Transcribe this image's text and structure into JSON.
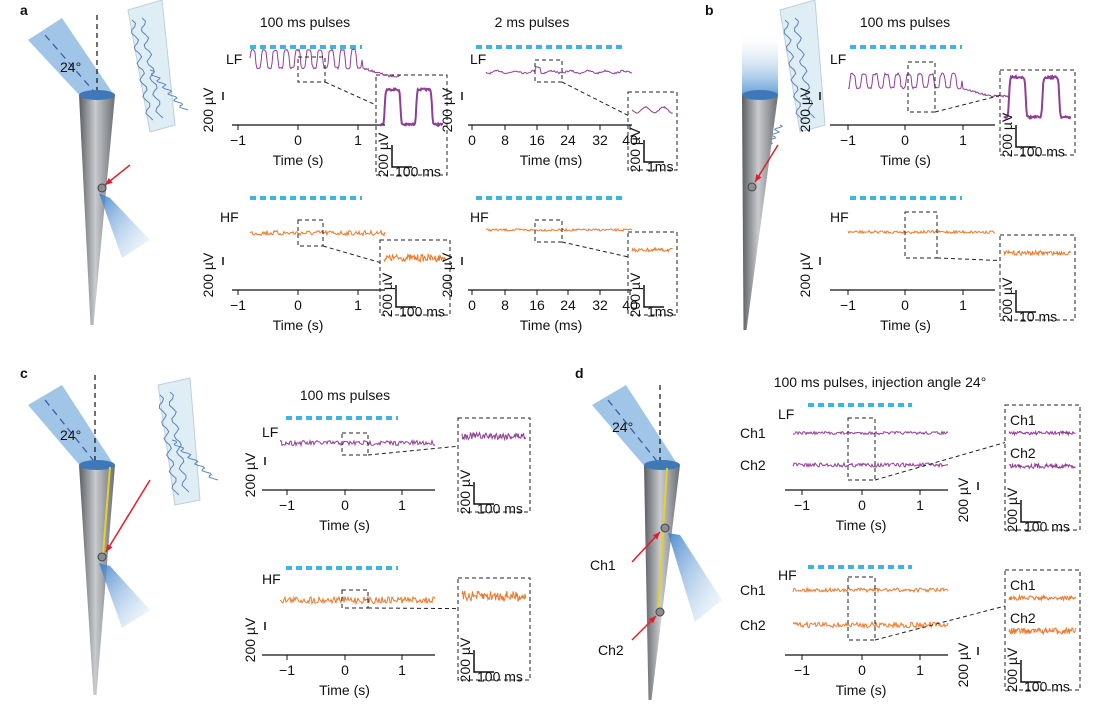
{
  "panels": [
    {
      "label": "a",
      "angle": "24°",
      "plots": [
        {
          "title": "100 ms pulses",
          "band": "LF",
          "ticks": [
            "−1",
            "0",
            "1"
          ],
          "xlabel": "Time (s)",
          "scale_v": "200 µV",
          "inset_v": "200 µV",
          "inset_t": "100 ms"
        },
        {
          "title": "2 ms pulses",
          "band": "LF",
          "ticks": [
            "0",
            "8",
            "16",
            "24",
            "32",
            "40"
          ],
          "xlabel": "Time (ms)",
          "scale_v": "200 µV",
          "inset_v": "200 µV",
          "inset_t": "1ms"
        },
        {
          "band": "HF",
          "ticks": [
            "−1",
            "0",
            "1"
          ],
          "xlabel": "Time (s)",
          "scale_v": "200 µV",
          "inset_v": "200 µV",
          "inset_t": "100 ms"
        },
        {
          "band": "HF",
          "ticks": [
            "0",
            "8",
            "16",
            "24",
            "32",
            "40"
          ],
          "xlabel": "Time (ms)",
          "scale_v": "200 µV",
          "inset_v": "200 µV",
          "inset_t": "1ms"
        }
      ]
    },
    {
      "label": "b",
      "plots": [
        {
          "title": "100 ms pulses",
          "band": "LF",
          "ticks": [
            "−1",
            "0",
            "1"
          ],
          "xlabel": "Time (s)",
          "scale_v": "200 µV",
          "inset_v": "200 µV",
          "inset_t": "100 ms"
        },
        {
          "band": "HF",
          "ticks": [
            "−1",
            "0",
            "1"
          ],
          "xlabel": "Time (s)",
          "scale_v": "200 µV",
          "inset_v": "200 µV",
          "inset_t": "10 ms"
        }
      ]
    },
    {
      "label": "c",
      "angle": "24°",
      "plots": [
        {
          "title": "100 ms pulses",
          "band": "LF",
          "ticks": [
            "−1",
            "0",
            "1"
          ],
          "xlabel": "Time (s)",
          "scale_v": "200 µV",
          "inset_v": "200 µV",
          "inset_t": "100 ms"
        },
        {
          "band": "HF",
          "ticks": [
            "−1",
            "0",
            "1"
          ],
          "xlabel": "Time (s)",
          "scale_v": "200 µV",
          "inset_v": "200 µV",
          "inset_t": "100 ms"
        }
      ]
    },
    {
      "label": "d",
      "angle": "24°",
      "probe_channels": [
        "Ch1",
        "Ch2"
      ],
      "plots": [
        {
          "title": "100 ms pulses, injection angle 24°",
          "band": "LF",
          "channels": [
            "Ch1",
            "Ch2"
          ],
          "ticks": [
            "−1",
            "0",
            "1"
          ],
          "xlabel": "Time (s)",
          "scale_v": "200 µV",
          "inset_channels": [
            "Ch1",
            "Ch2"
          ],
          "inset_v": "200 µV",
          "inset_t": "100 ms"
        },
        {
          "band": "HF",
          "channels": [
            "Ch1",
            "Ch2"
          ],
          "ticks": [
            "−1",
            "0",
            "1"
          ],
          "xlabel": "Time (s)",
          "scale_v": "200 µV",
          "inset_channels": [
            "Ch1",
            "Ch2"
          ],
          "inset_v": "200 µV",
          "inset_t": "100 ms"
        }
      ]
    }
  ]
}
